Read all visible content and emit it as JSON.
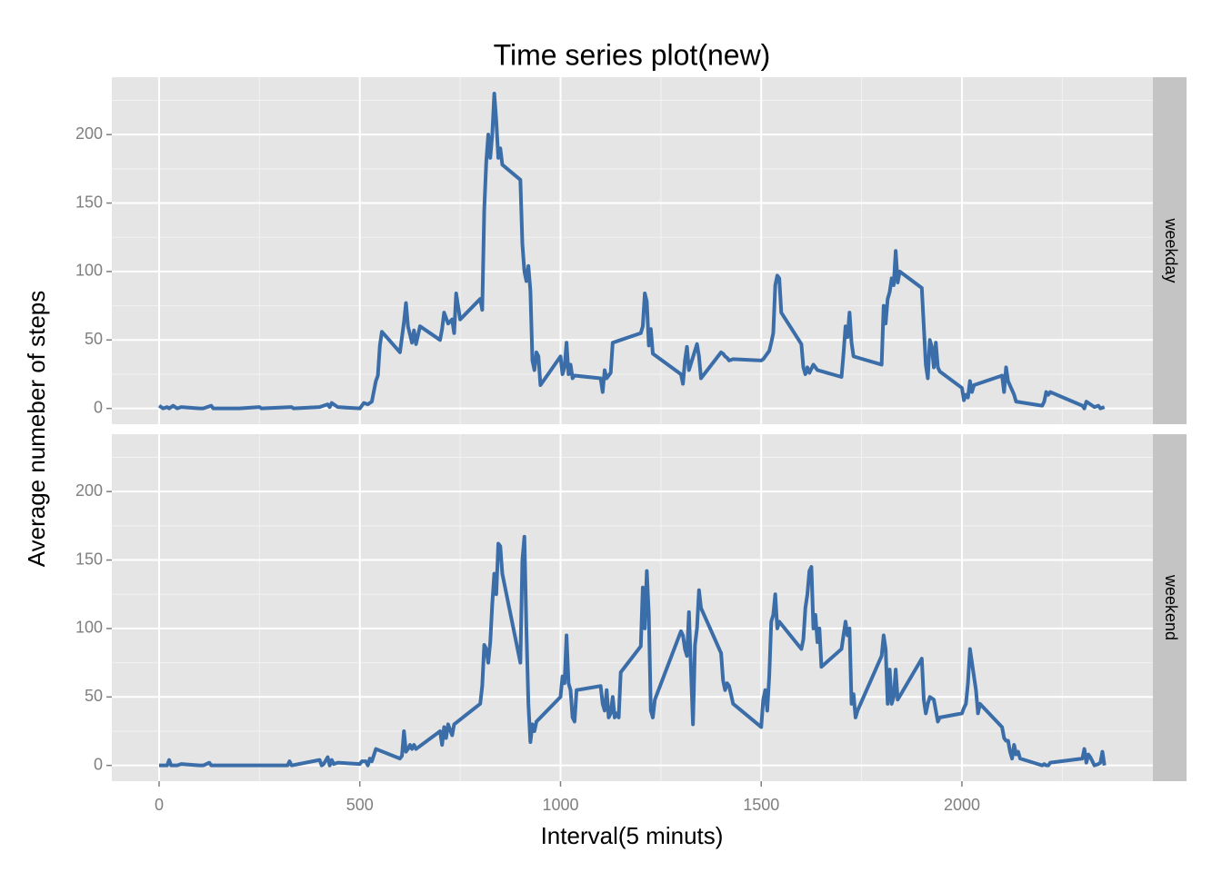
{
  "chart_data": {
    "type": "line",
    "title": "Time series plot(new)",
    "x_label": "Interval(5 minuts)",
    "y_label": "Average numeber of steps",
    "color": "#3b6ea8",
    "grid": true,
    "xlim": [
      -117.75,
      2475.75
    ],
    "xticks": [
      0,
      500,
      1000,
      1500,
      2000
    ],
    "xminor": [
      250,
      750,
      1250,
      1750,
      2250
    ],
    "ylim": [
      -11.5,
      241.9
    ],
    "yticks": [
      0,
      50,
      100,
      150,
      200
    ],
    "yminor": [
      25,
      75,
      125,
      175,
      225
    ],
    "panels": [
      {
        "label": "weekday",
        "x": [
          0,
          10,
          20,
          25,
          35,
          45,
          55,
          100,
          110,
          130,
          135,
          200,
          250,
          255,
          330,
          335,
          400,
          410,
          420,
          425,
          430,
          445,
          500,
          510,
          520,
          530,
          540,
          545,
          550,
          555,
          600,
          610,
          615,
          620,
          630,
          635,
          640,
          650,
          700,
          705,
          710,
          720,
          730,
          735,
          740,
          750,
          800,
          805,
          810,
          815,
          820,
          825,
          830,
          835,
          840,
          845,
          850,
          855,
          900,
          905,
          910,
          915,
          920,
          925,
          930,
          935,
          940,
          945,
          950,
          1000,
          1005,
          1010,
          1015,
          1020,
          1025,
          1030,
          1035,
          1100,
          1105,
          1110,
          1115,
          1120,
          1125,
          1130,
          1200,
          1205,
          1210,
          1215,
          1220,
          1225,
          1230,
          1300,
          1305,
          1310,
          1315,
          1320,
          1340,
          1345,
          1350,
          1400,
          1405,
          1410,
          1415,
          1420,
          1430,
          1500,
          1505,
          1510,
          1515,
          1520,
          1525,
          1530,
          1535,
          1540,
          1545,
          1550,
          1600,
          1605,
          1610,
          1615,
          1620,
          1630,
          1640,
          1700,
          1705,
          1710,
          1715,
          1720,
          1725,
          1730,
          1800,
          1805,
          1810,
          1815,
          1820,
          1825,
          1830,
          1835,
          1840,
          1845,
          1900,
          1905,
          1910,
          1915,
          1920,
          1925,
          1930,
          1935,
          1940,
          1945,
          2000,
          2005,
          2010,
          2015,
          2020,
          2025,
          2030,
          2100,
          2105,
          2110,
          2115,
          2130,
          2135,
          2200,
          2205,
          2210,
          2215,
          2220,
          2300,
          2305,
          2310,
          2315,
          2320,
          2330,
          2340,
          2345,
          2355
        ],
        "values": [
          2,
          0,
          1,
          0,
          2,
          0,
          1,
          0,
          0,
          2,
          0,
          0,
          1,
          0,
          1,
          0,
          1,
          2,
          3,
          1,
          4,
          1,
          0,
          4,
          3,
          5,
          20,
          24,
          46,
          56,
          41,
          63,
          77,
          60,
          48,
          57,
          47,
          60,
          50,
          58,
          70,
          62,
          65,
          55,
          84,
          65,
          80,
          72,
          145,
          180,
          200,
          183,
          200,
          230,
          210,
          183,
          190,
          178,
          167,
          120,
          100,
          93,
          104,
          86,
          35,
          28,
          41,
          38,
          17,
          38,
          25,
          30,
          48,
          25,
          32,
          22,
          24,
          22,
          12,
          28,
          22,
          24,
          26,
          48,
          55,
          60,
          84,
          78,
          46,
          58,
          40,
          25,
          18,
          35,
          45,
          28,
          47,
          38,
          22,
          41,
          40,
          38,
          37,
          35,
          36,
          35,
          36,
          38,
          40,
          42,
          48,
          55,
          90,
          97,
          95,
          70,
          47,
          30,
          25,
          30,
          26,
          32,
          28,
          23,
          40,
          60,
          52,
          70,
          48,
          38,
          32,
          75,
          62,
          80,
          85,
          95,
          90,
          115,
          92,
          100,
          88,
          60,
          32,
          22,
          50,
          45,
          30,
          48,
          30,
          27,
          15,
          6,
          10,
          8,
          20,
          12,
          17,
          24,
          12,
          30,
          20,
          10,
          5,
          2,
          5,
          12,
          10,
          12,
          2,
          0,
          5,
          4,
          3,
          1,
          2,
          0,
          1
        ]
      },
      {
        "label": "weekend",
        "x": [
          0,
          10,
          20,
          25,
          30,
          45,
          55,
          100,
          110,
          125,
          130,
          200,
          225,
          255,
          320,
          325,
          330,
          400,
          405,
          410,
          420,
          425,
          430,
          435,
          445,
          500,
          505,
          510,
          515,
          520,
          525,
          530,
          540,
          600,
          605,
          610,
          615,
          620,
          625,
          630,
          635,
          640,
          700,
          705,
          710,
          715,
          720,
          730,
          735,
          800,
          805,
          810,
          815,
          820,
          825,
          830,
          835,
          840,
          845,
          850,
          855,
          900,
          905,
          910,
          915,
          920,
          925,
          930,
          935,
          940,
          1000,
          1005,
          1010,
          1015,
          1020,
          1025,
          1030,
          1035,
          1040,
          1100,
          1105,
          1110,
          1115,
          1120,
          1125,
          1130,
          1135,
          1140,
          1145,
          1150,
          1200,
          1205,
          1210,
          1215,
          1220,
          1225,
          1230,
          1235,
          1300,
          1305,
          1310,
          1315,
          1320,
          1325,
          1330,
          1335,
          1340,
          1345,
          1350,
          1400,
          1405,
          1410,
          1415,
          1420,
          1430,
          1500,
          1505,
          1510,
          1515,
          1520,
          1525,
          1530,
          1535,
          1540,
          1545,
          1600,
          1605,
          1610,
          1615,
          1620,
          1625,
          1630,
          1635,
          1640,
          1645,
          1650,
          1700,
          1705,
          1710,
          1715,
          1720,
          1725,
          1730,
          1735,
          1740,
          1800,
          1805,
          1810,
          1815,
          1820,
          1825,
          1830,
          1835,
          1840,
          1900,
          1905,
          1910,
          1915,
          1920,
          1930,
          1940,
          1945,
          2000,
          2005,
          2010,
          2015,
          2020,
          2025,
          2030,
          2035,
          2040,
          2045,
          2100,
          2105,
          2110,
          2115,
          2120,
          2125,
          2130,
          2135,
          2140,
          2145,
          2200,
          2205,
          2210,
          2215,
          2220,
          2300,
          2305,
          2310,
          2315,
          2320,
          2330,
          2340,
          2345,
          2350,
          2355
        ],
        "values": [
          0,
          0,
          0,
          4,
          0,
          0,
          1,
          0,
          0,
          2,
          0,
          0,
          0,
          0,
          0,
          3,
          0,
          4,
          0,
          1,
          6,
          0,
          4,
          1,
          2,
          1,
          3,
          3,
          3,
          0,
          5,
          3,
          12,
          5,
          7,
          25,
          10,
          12,
          15,
          12,
          15,
          12,
          25,
          15,
          28,
          20,
          30,
          22,
          30,
          45,
          58,
          88,
          85,
          75,
          90,
          118,
          140,
          125,
          162,
          160,
          140,
          75,
          150,
          167,
          100,
          45,
          17,
          30,
          25,
          32,
          50,
          65,
          60,
          95,
          60,
          55,
          35,
          32,
          55,
          58,
          45,
          40,
          55,
          35,
          38,
          50,
          35,
          38,
          35,
          68,
          87,
          130,
          100,
          142,
          110,
          40,
          35,
          48,
          98,
          95,
          85,
          80,
          112,
          70,
          30,
          88,
          100,
          128,
          115,
          82,
          62,
          55,
          60,
          58,
          45,
          28,
          48,
          55,
          40,
          65,
          105,
          110,
          125,
          100,
          105,
          85,
          92,
          115,
          125,
          142,
          145,
          100,
          110,
          90,
          100,
          72,
          85,
          95,
          105,
          95,
          100,
          45,
          52,
          35,
          40,
          80,
          95,
          85,
          45,
          70,
          45,
          50,
          70,
          48,
          78,
          48,
          38,
          45,
          50,
          48,
          32,
          35,
          38,
          42,
          45,
          60,
          85,
          75,
          65,
          55,
          38,
          45,
          28,
          20,
          18,
          18,
          10,
          5,
          15,
          8,
          10,
          5,
          0,
          1,
          0,
          0,
          2,
          5,
          12,
          2,
          8,
          6,
          0,
          1,
          2,
          10,
          0
        ]
      }
    ]
  }
}
